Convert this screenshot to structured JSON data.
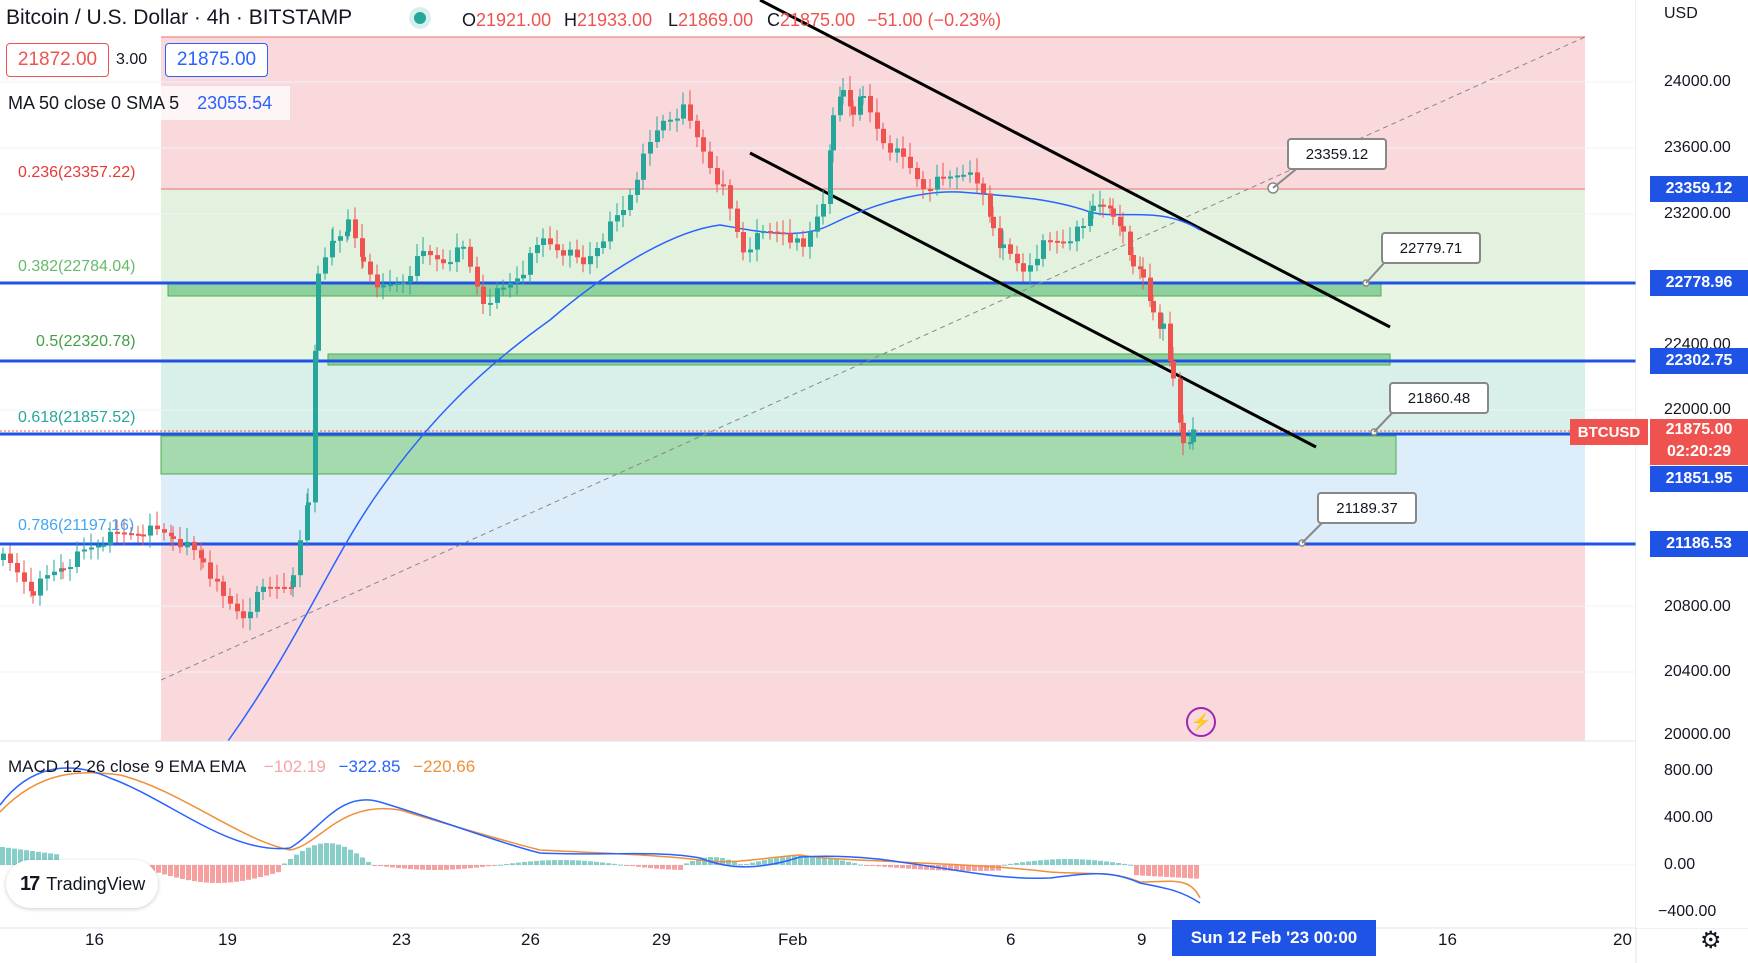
{
  "header": {
    "title": "Bitcoin / U.S. Dollar · 4h · BITSTAMP",
    "open_label": "O",
    "open": "21921.00",
    "high_label": "H",
    "high": "21933.00",
    "low_label": "L",
    "low": "21869.00",
    "close_label": "C",
    "close": "21875.00",
    "change": "−51.00 (−0.23%)",
    "sell_price": "21872.00",
    "spread": "3.00",
    "buy_price": "21875.00"
  },
  "indicator_ma": {
    "label": "MA 50 close 0 SMA 5",
    "value": "23055.54"
  },
  "fibonacci": [
    {
      "label": "0.236(23357.22)"
    },
    {
      "label": "0.382(22784.04)"
    },
    {
      "label": "0.5(22320.78)"
    },
    {
      "label": "0.618(21857.52)"
    },
    {
      "label": "0.786(21197.16)"
    }
  ],
  "price_axis": {
    "currency": "USD",
    "ticks": [
      "24000.00",
      "23600.00",
      "23200.00",
      "22400.00",
      "22000.00",
      "20800.00",
      "20400.00",
      "20000.00"
    ],
    "tags": [
      "23359.12",
      "22778.96",
      "22302.75",
      "21851.95",
      "21186.53"
    ],
    "symbol": "BTCUSD",
    "last_price": "21875.00",
    "countdown": "02:20:29"
  },
  "callouts": [
    "23359.12",
    "22779.71",
    "21860.48",
    "21189.37"
  ],
  "macd": {
    "label": "MACD 12 26 close 9 EMA EMA",
    "hist": "−102.19",
    "macd": "−322.85",
    "signal": "−220.66",
    "ticks": [
      "800.00",
      "400.00",
      "0.00",
      "−400.00"
    ]
  },
  "time_axis": {
    "ticks": [
      "16",
      "19",
      "23",
      "26",
      "29",
      "Feb",
      "6",
      "9",
      "16",
      "20"
    ],
    "cursor_label": "Sun 12 Feb '23   00:00"
  },
  "branding": {
    "logo_text": "TradingView",
    "logo_mark": "17"
  },
  "colors": {
    "up": "#26a69a",
    "down": "#ef5350",
    "accent": "#2962ff",
    "fib_red": "#f8d7da",
    "fib_green": "#dff0d8"
  }
}
